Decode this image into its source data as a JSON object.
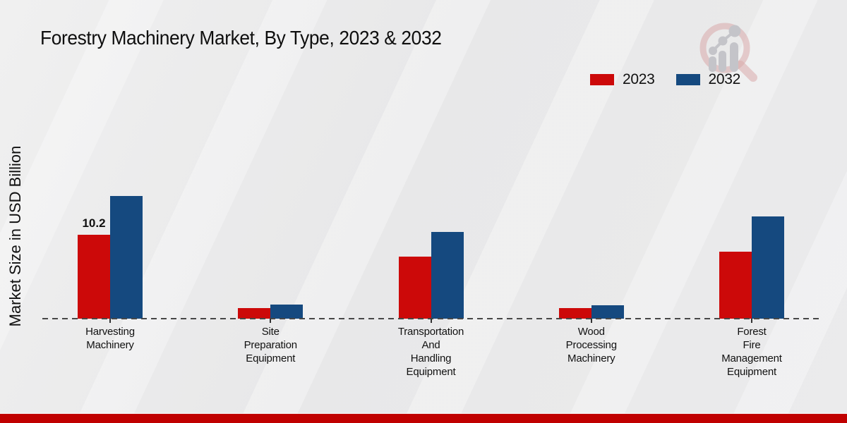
{
  "page": {
    "title": "Forestry Machinery Market, By Type, 2023 & 2032",
    "ylabel": "Market Size in USD Billion"
  },
  "colors": {
    "series_2023": "#cc0909",
    "series_2032": "#15497f",
    "baseline": "#474747",
    "footer_bar": "#c00000",
    "text": "#111111",
    "logo_ring": "#d9a9a9",
    "logo_bars": "#c4c4c9"
  },
  "legend": {
    "items": [
      {
        "label": "2023",
        "color": "#cc0909"
      },
      {
        "label": "2032",
        "color": "#15497f"
      }
    ]
  },
  "chart_data": {
    "type": "bar",
    "title": "Forestry Machinery Market, By Type, 2023 & 2032",
    "xlabel": "",
    "ylabel": "Market Size in USD Billion",
    "ylim": [
      0,
      16
    ],
    "grid": false,
    "legend_position": "top-right",
    "baseline_style": "dashed",
    "categories": [
      "Harvesting Machinery",
      "Site Preparation Equipment",
      "Transportation And Handling Equipment",
      "Wood Processing Machinery",
      "Forest Fire Management Equipment"
    ],
    "category_label_lines": [
      [
        "Harvesting",
        "Machinery"
      ],
      [
        "Site",
        "Preparation",
        "Equipment"
      ],
      [
        "Transportation",
        "And",
        "Handling",
        "Equipment"
      ],
      [
        "Wood",
        "Processing",
        "Machinery"
      ],
      [
        "Forest",
        "Fire",
        "Management",
        "Equipment"
      ]
    ],
    "series": [
      {
        "name": "2023",
        "color": "#cc0909",
        "values": [
          10.2,
          1.3,
          7.5,
          1.3,
          8.1
        ]
      },
      {
        "name": "2032",
        "color": "#15497f",
        "values": [
          14.9,
          1.7,
          10.5,
          1.6,
          12.4
        ]
      }
    ],
    "annotations": [
      {
        "series": "2023",
        "category_index": 0,
        "text": "10.2"
      }
    ]
  }
}
